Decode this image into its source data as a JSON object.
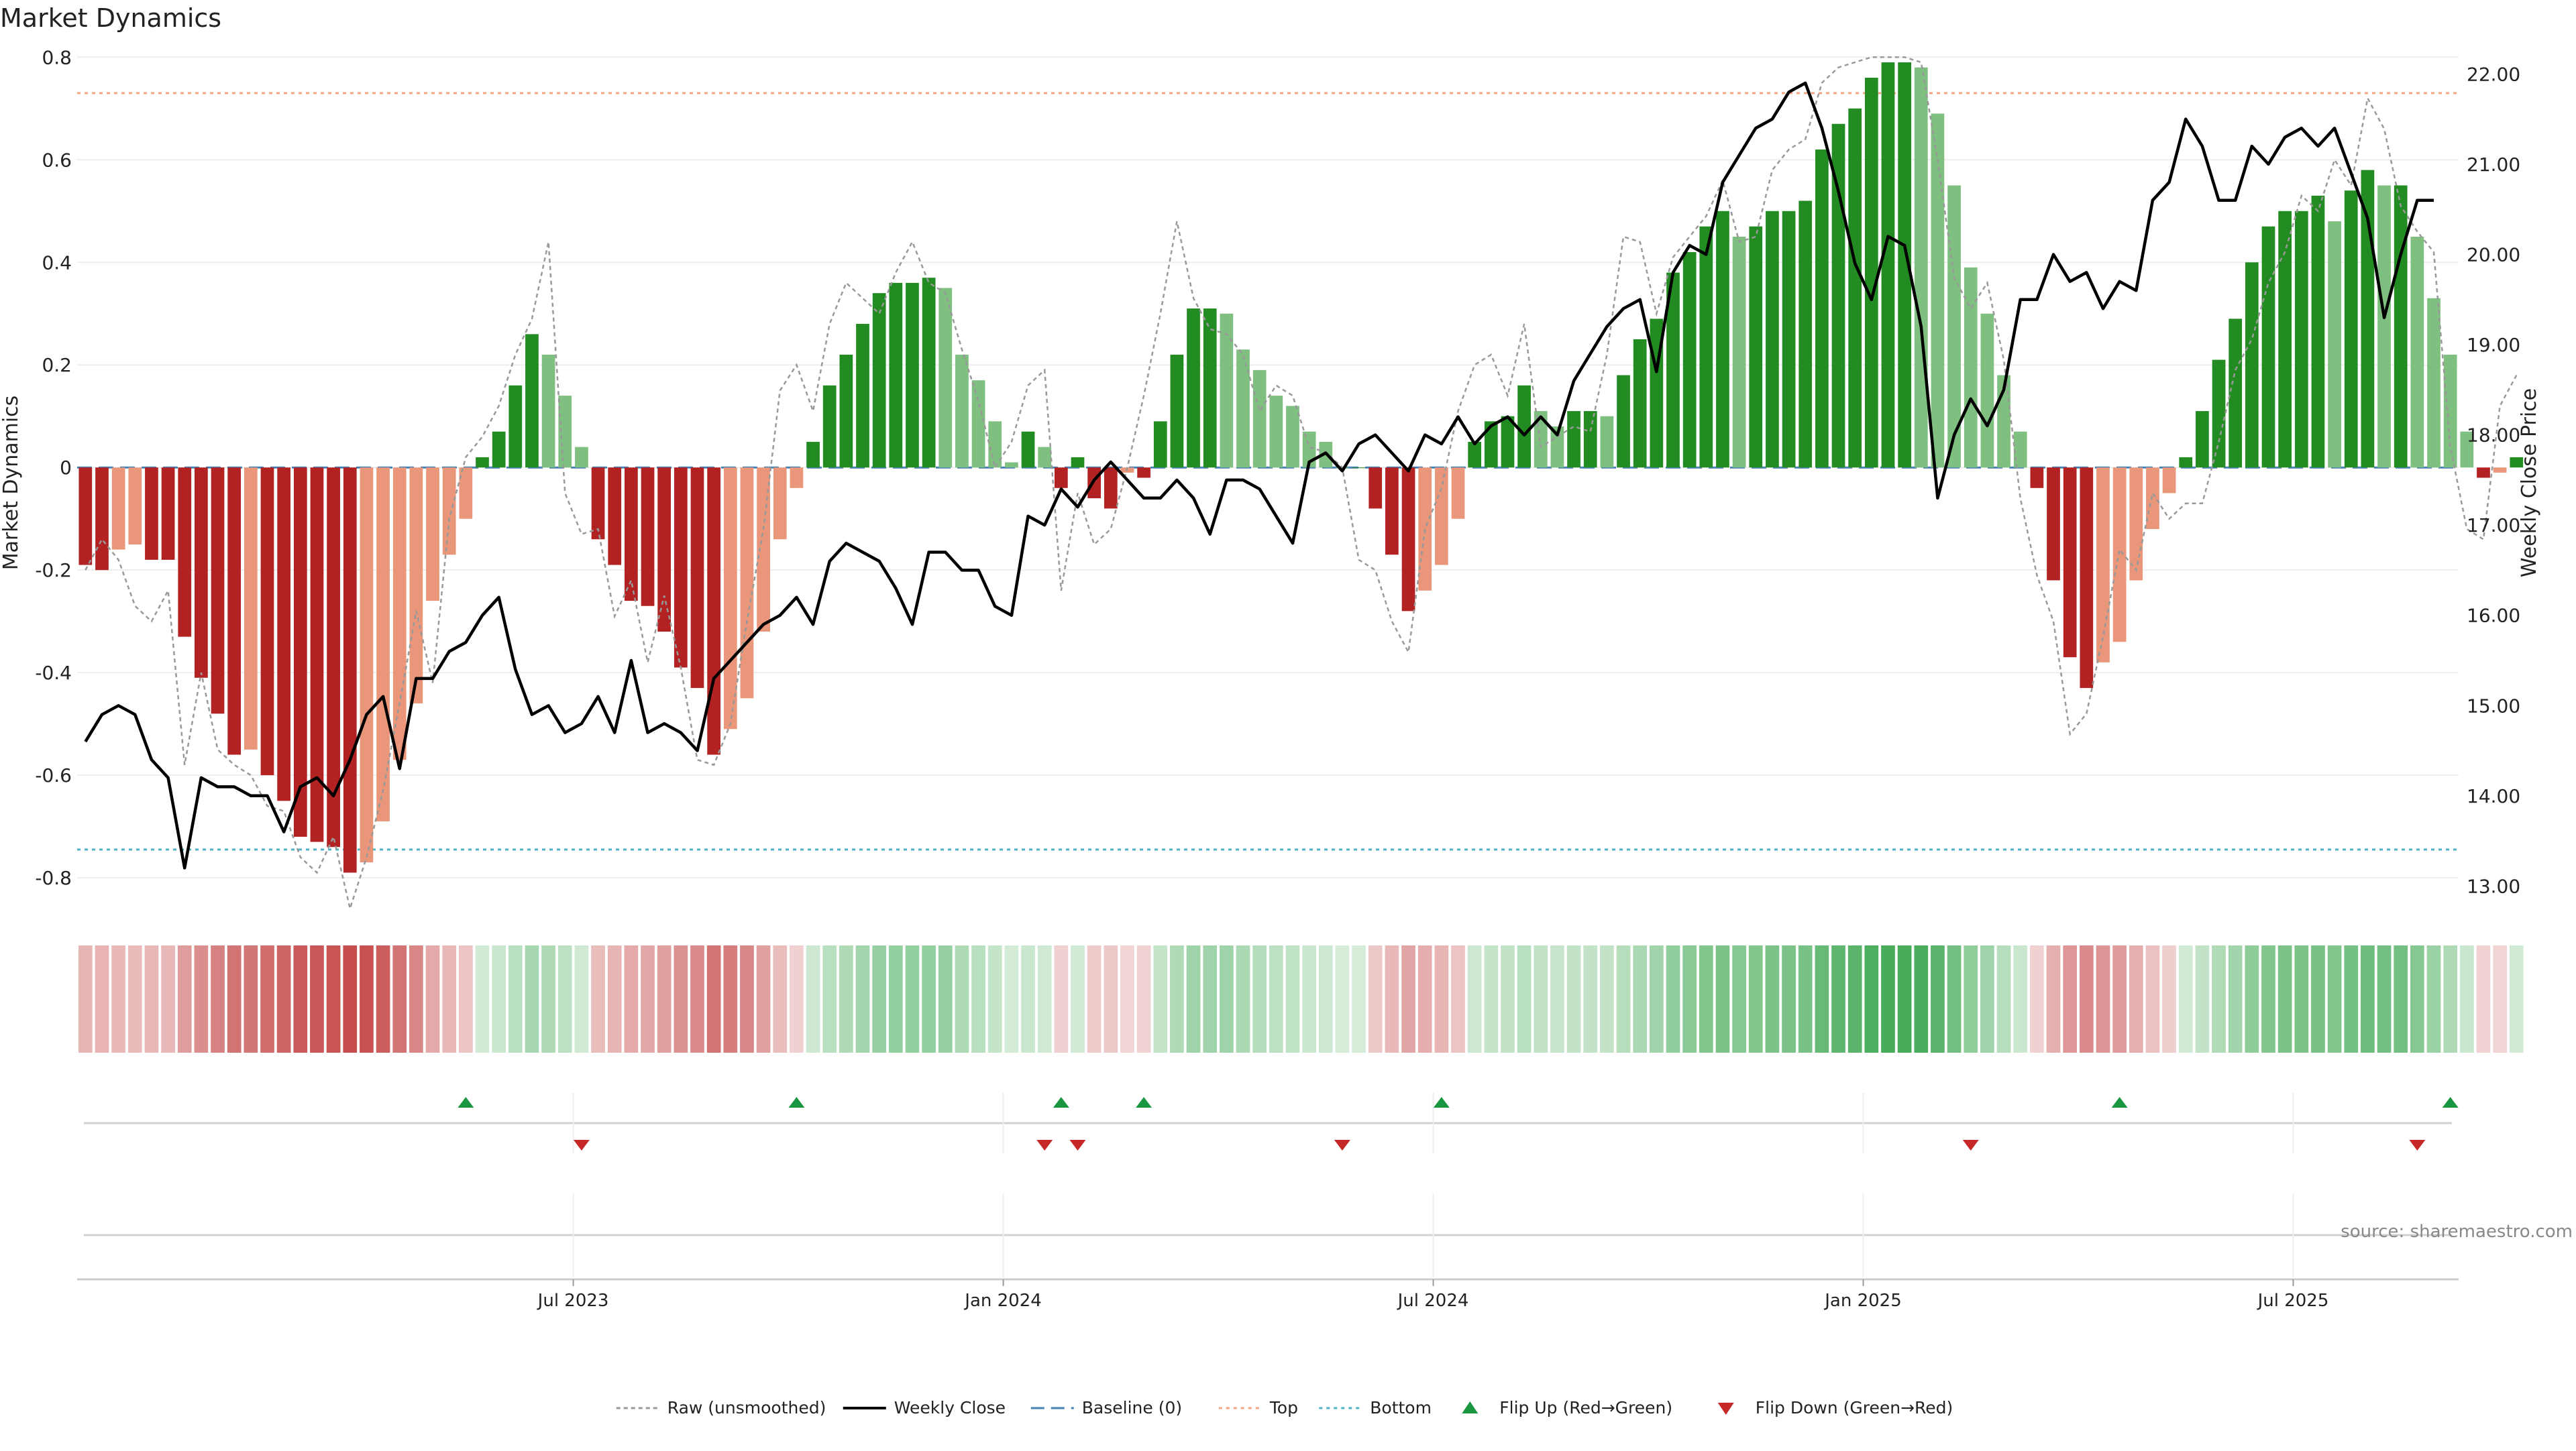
{
  "title": "Market Dynamics",
  "source_note": "source: sharemaestro.com",
  "colors": {
    "bar_pos_strong": "#228b22",
    "bar_pos_weak": "#7fbf7f",
    "bar_neg_strong": "#b22222",
    "bar_neg_weak": "#e9967a",
    "raw_line": "#999999",
    "close_line": "#000000",
    "baseline": "#4682b4",
    "top_line": "#f4a582",
    "bottom_line": "#4fb3c4",
    "flip_up": "#1a9641",
    "flip_down": "#c62828",
    "grid": "#eeeeee"
  },
  "chart_data": {
    "type": "bar+line",
    "title": "Market Dynamics",
    "ylabel": "Market Dynamics",
    "y2label": "Weekly Close Price",
    "ylim": [
      -0.86,
      0.82
    ],
    "y2lim": [
      12.75,
      22.3
    ],
    "yticks": [
      {
        "v": 0.8,
        "label": "0.8"
      },
      {
        "v": 0.6,
        "label": "0.6"
      },
      {
        "v": 0.4,
        "label": "0.4"
      },
      {
        "v": 0.2,
        "label": "0.2"
      },
      {
        "v": 0,
        "label": "0"
      },
      {
        "v": -0.2,
        "label": "-0.2"
      },
      {
        "v": -0.4,
        "label": "-0.4"
      },
      {
        "v": -0.6,
        "label": "-0.6"
      },
      {
        "v": -0.8,
        "label": "-0.8"
      }
    ],
    "y2ticks": [
      {
        "v": 22,
        "label": "22.00"
      },
      {
        "v": 21,
        "label": "21.00"
      },
      {
        "v": 20,
        "label": "20.00"
      },
      {
        "v": 19,
        "label": "19.00"
      },
      {
        "v": 18,
        "label": "18.00"
      },
      {
        "v": 17,
        "label": "17.00"
      },
      {
        "v": 16,
        "label": "16.00"
      },
      {
        "v": 15,
        "label": "15.00"
      },
      {
        "v": 14,
        "label": "14.00"
      },
      {
        "v": 13,
        "label": "13.00"
      }
    ],
    "xticks": [
      {
        "week": 30,
        "label": "Jul 2023"
      },
      {
        "week": 56,
        "label": "Jan 2024"
      },
      {
        "week": 82,
        "label": "Jul 2024"
      },
      {
        "week": 108,
        "label": "Jan 2025"
      },
      {
        "week": 134,
        "label": "Jul 2025"
      }
    ],
    "top_level": 0.73,
    "bottom_level": -0.745,
    "baseline_level": 0,
    "weeks": 144,
    "momentum": [
      -0.19,
      -0.2,
      -0.16,
      -0.15,
      -0.18,
      -0.18,
      -0.33,
      -0.41,
      -0.48,
      -0.56,
      -0.55,
      -0.6,
      -0.65,
      -0.72,
      -0.73,
      -0.74,
      -0.79,
      -0.77,
      -0.69,
      -0.57,
      -0.46,
      -0.26,
      -0.17,
      -0.1,
      0.02,
      0.07,
      0.16,
      0.26,
      0.22,
      0.14,
      0.04,
      -0.14,
      -0.19,
      -0.26,
      -0.27,
      -0.32,
      -0.39,
      -0.43,
      -0.56,
      -0.51,
      -0.45,
      -0.32,
      -0.14,
      -0.04,
      0.05,
      0.16,
      0.22,
      0.28,
      0.34,
      0.36,
      0.36,
      0.37,
      0.35,
      0.22,
      0.17,
      0.09,
      0.01,
      0.07,
      0.04,
      -0.04,
      0.02,
      -0.06,
      -0.08,
      -0.01,
      -0.02,
      0.09,
      0.22,
      0.31,
      0.31,
      0.3,
      0.23,
      0.19,
      0.14,
      0.12,
      0.07,
      0.05,
      0.0,
      -0.0,
      -0.08,
      -0.17,
      -0.28,
      -0.24,
      -0.19,
      -0.1,
      0.05,
      0.09,
      0.1,
      0.16,
      0.11,
      0.08,
      0.11,
      0.11,
      0.1,
      0.18,
      0.25,
      0.29,
      0.38,
      0.42,
      0.47,
      0.5,
      0.45,
      0.47,
      0.5,
      0.5,
      0.52,
      0.62,
      0.67,
      0.7,
      0.76,
      0.79,
      0.79,
      0.78,
      0.69,
      0.55,
      0.39,
      0.3,
      0.18,
      0.07,
      -0.04,
      -0.22,
      -0.37,
      -0.43,
      -0.38,
      -0.34,
      -0.22,
      -0.12,
      -0.05,
      0.02,
      0.11,
      0.21,
      0.29,
      0.4,
      0.47,
      0.5,
      0.5,
      0.53,
      0.48,
      0.54,
      0.58,
      0.55,
      0.55,
      0.45,
      0.33,
      0.22,
      0.07,
      -0.02,
      -0.01,
      0.02
    ],
    "raw": [
      -0.2,
      -0.14,
      -0.18,
      -0.27,
      -0.3,
      -0.24,
      -0.58,
      -0.4,
      -0.55,
      -0.58,
      -0.6,
      -0.66,
      -0.67,
      -0.76,
      -0.79,
      -0.72,
      -0.86,
      -0.76,
      -0.63,
      -0.46,
      -0.28,
      -0.42,
      -0.1,
      0.02,
      0.06,
      0.12,
      0.22,
      0.29,
      0.44,
      -0.05,
      -0.13,
      -0.12,
      -0.29,
      -0.22,
      -0.38,
      -0.25,
      -0.39,
      -0.57,
      -0.58,
      -0.5,
      -0.3,
      -0.12,
      0.15,
      0.2,
      0.11,
      0.28,
      0.36,
      0.33,
      0.3,
      0.38,
      0.44,
      0.36,
      0.34,
      0.23,
      0.13,
      0.0,
      0.05,
      0.16,
      0.19,
      -0.24,
      -0.05,
      -0.15,
      -0.12,
      0.0,
      0.14,
      0.3,
      0.48,
      0.33,
      0.27,
      0.26,
      0.22,
      0.11,
      0.16,
      0.14,
      0.04,
      0.03,
      0.0,
      -0.18,
      -0.2,
      -0.3,
      -0.36,
      -0.12,
      -0.04,
      0.11,
      0.2,
      0.22,
      0.14,
      0.28,
      0.04,
      0.06,
      0.08,
      0.07,
      0.22,
      0.45,
      0.44,
      0.3,
      0.41,
      0.45,
      0.49,
      0.56,
      0.44,
      0.45,
      0.58,
      0.62,
      0.64,
      0.75,
      0.78,
      0.79,
      0.8,
      0.8,
      0.8,
      0.79,
      0.6,
      0.37,
      0.31,
      0.36,
      0.21,
      -0.06,
      -0.21,
      -0.3,
      -0.52,
      -0.48,
      -0.33,
      -0.16,
      -0.2,
      -0.05,
      -0.1,
      -0.07,
      -0.07,
      0.05,
      0.19,
      0.25,
      0.36,
      0.42,
      0.53,
      0.5,
      0.6,
      0.55,
      0.72,
      0.66,
      0.51,
      0.46,
      0.42,
      0.04,
      -0.12,
      -0.14,
      0.12,
      0.18
    ],
    "close": [
      14.6,
      14.9,
      15.0,
      14.9,
      14.4,
      14.2,
      13.2,
      14.2,
      14.1,
      14.1,
      14.0,
      14.0,
      13.6,
      14.1,
      14.2,
      14.0,
      14.4,
      14.9,
      15.1,
      14.3,
      15.3,
      15.3,
      15.6,
      15.7,
      16.0,
      16.2,
      15.4,
      14.9,
      15.0,
      14.7,
      14.8,
      15.1,
      14.7,
      15.5,
      14.7,
      14.8,
      14.7,
      14.5,
      15.3,
      15.5,
      15.7,
      15.9,
      16.0,
      16.2,
      15.9,
      16.6,
      16.8,
      16.7,
      16.6,
      16.3,
      15.9,
      16.7,
      16.7,
      16.5,
      16.5,
      16.1,
      16.0,
      17.1,
      17.0,
      17.4,
      17.2,
      17.5,
      17.7,
      17.5,
      17.3,
      17.3,
      17.5,
      17.3,
      16.9,
      17.5,
      17.5,
      17.4,
      17.1,
      16.8,
      17.7,
      17.8,
      17.6,
      17.9,
      18.0,
      17.8,
      17.6,
      18.0,
      17.9,
      18.2,
      17.9,
      18.1,
      18.2,
      18.0,
      18.2,
      18.0,
      18.6,
      18.9,
      19.2,
      19.4,
      19.5,
      18.7,
      19.8,
      20.1,
      20.0,
      20.8,
      21.1,
      21.4,
      21.5,
      21.8,
      21.9,
      21.4,
      20.7,
      19.9,
      19.5,
      20.2,
      20.1,
      19.2,
      17.3,
      18.0,
      18.4,
      18.1,
      18.5,
      19.5,
      19.5,
      20.0,
      19.7,
      19.8,
      19.4,
      19.7,
      19.6,
      20.6,
      20.8,
      21.5,
      21.2,
      20.6,
      20.6,
      21.2,
      21.0,
      21.3,
      21.4,
      21.2,
      21.4,
      20.9,
      20.4,
      19.3,
      20.0,
      20.6,
      20.6
    ],
    "heat_strip": [
      -0.19,
      -0.2,
      -0.16,
      -0.15,
      -0.18,
      -0.18,
      -0.33,
      -0.41,
      -0.48,
      -0.56,
      -0.55,
      -0.6,
      -0.65,
      -0.72,
      -0.73,
      -0.74,
      -0.79,
      -0.77,
      -0.69,
      -0.57,
      -0.46,
      -0.26,
      -0.17,
      -0.1,
      0.02,
      0.07,
      0.16,
      0.26,
      0.22,
      0.14,
      0.04,
      -0.14,
      -0.19,
      -0.26,
      -0.27,
      -0.32,
      -0.39,
      -0.43,
      -0.56,
      -0.51,
      -0.45,
      -0.32,
      -0.14,
      -0.04,
      0.05,
      0.16,
      0.22,
      0.28,
      0.34,
      0.36,
      0.36,
      0.37,
      0.35,
      0.22,
      0.17,
      0.09,
      0.01,
      0.07,
      0.04,
      -0.04,
      0.02,
      -0.06,
      -0.08,
      -0.01,
      -0.02,
      0.09,
      0.22,
      0.31,
      0.31,
      0.3,
      0.23,
      0.19,
      0.14,
      0.12,
      0.07,
      0.05,
      0.0,
      -0.0,
      -0.08,
      -0.17,
      -0.28,
      -0.24,
      -0.19,
      -0.1,
      0.05,
      0.09,
      0.1,
      0.16,
      0.11,
      0.08,
      0.11,
      0.11,
      0.1,
      0.18,
      0.25,
      0.29,
      0.38,
      0.42,
      0.47,
      0.5,
      0.45,
      0.47,
      0.5,
      0.5,
      0.52,
      0.62,
      0.67,
      0.7,
      0.76,
      0.79,
      0.79,
      0.78,
      0.69,
      0.55,
      0.39,
      0.3,
      0.18,
      0.07,
      -0.04,
      -0.22,
      -0.37,
      -0.43,
      -0.38,
      -0.34,
      -0.22,
      -0.12,
      -0.05,
      0.02,
      0.11,
      0.21,
      0.29,
      0.4,
      0.47,
      0.5,
      0.5,
      0.53,
      0.48,
      0.54,
      0.58,
      0.55,
      0.55,
      0.45,
      0.33,
      0.22,
      0.07,
      -0.02,
      -0.01,
      0.02
    ],
    "flip_up_weeks": [
      23,
      43,
      59,
      64,
      82,
      123,
      143
    ],
    "flip_down_weeks": [
      30,
      58,
      60,
      76,
      114,
      141
    ],
    "legend": [
      {
        "key": "raw",
        "label": "Raw (unsmoothed)"
      },
      {
        "key": "close",
        "label": "Weekly Close"
      },
      {
        "key": "baseline",
        "label": "Baseline (0)"
      },
      {
        "key": "top",
        "label": "Top"
      },
      {
        "key": "bottom",
        "label": "Bottom"
      },
      {
        "key": "flip_up",
        "label": "Flip Up (Red→Green)"
      },
      {
        "key": "flip_down",
        "label": "Flip Down (Green→Red)"
      }
    ],
    "legend_position": "bottom-center",
    "grid": true
  }
}
